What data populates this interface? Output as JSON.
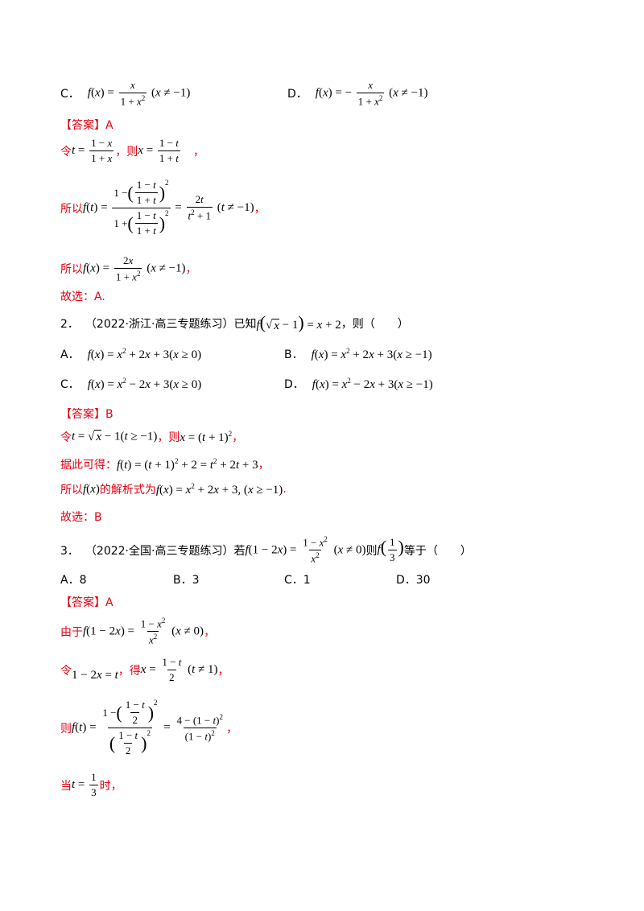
{
  "q1_options": {
    "c_label": "C．",
    "d_label": "D．"
  },
  "q1_answer": {
    "answer_line": "【答案】A",
    "let": "令",
    "then": "，则",
    "so1": "所以",
    "so2": "所以",
    "choose": "故选：A."
  },
  "q2": {
    "number": "2．",
    "source": "（2022·浙江·高三专题练习）已知",
    "then": "，则（　　）",
    "a_label": "A．",
    "b_label": "B．",
    "c_label": "C．",
    "d_label": "D．",
    "answer_line": "【答案】B",
    "let": "令",
    "then2": "，则",
    "derive": "据此可得：",
    "so": "所以",
    "analytic": "的解析式为",
    "choose": "故选：B"
  },
  "q3": {
    "number": "3．",
    "source": "（2022·全国·高三专题练习）若",
    "then": "则",
    "equals": "等于（　　）",
    "a": "A．8",
    "b": "B．3",
    "c": "C．1",
    "d": "D．30",
    "answer_line": "【答案】A",
    "since": "由于",
    "let": "令",
    "get": "，得",
    "when": "当",
    "when_end": "时，"
  }
}
